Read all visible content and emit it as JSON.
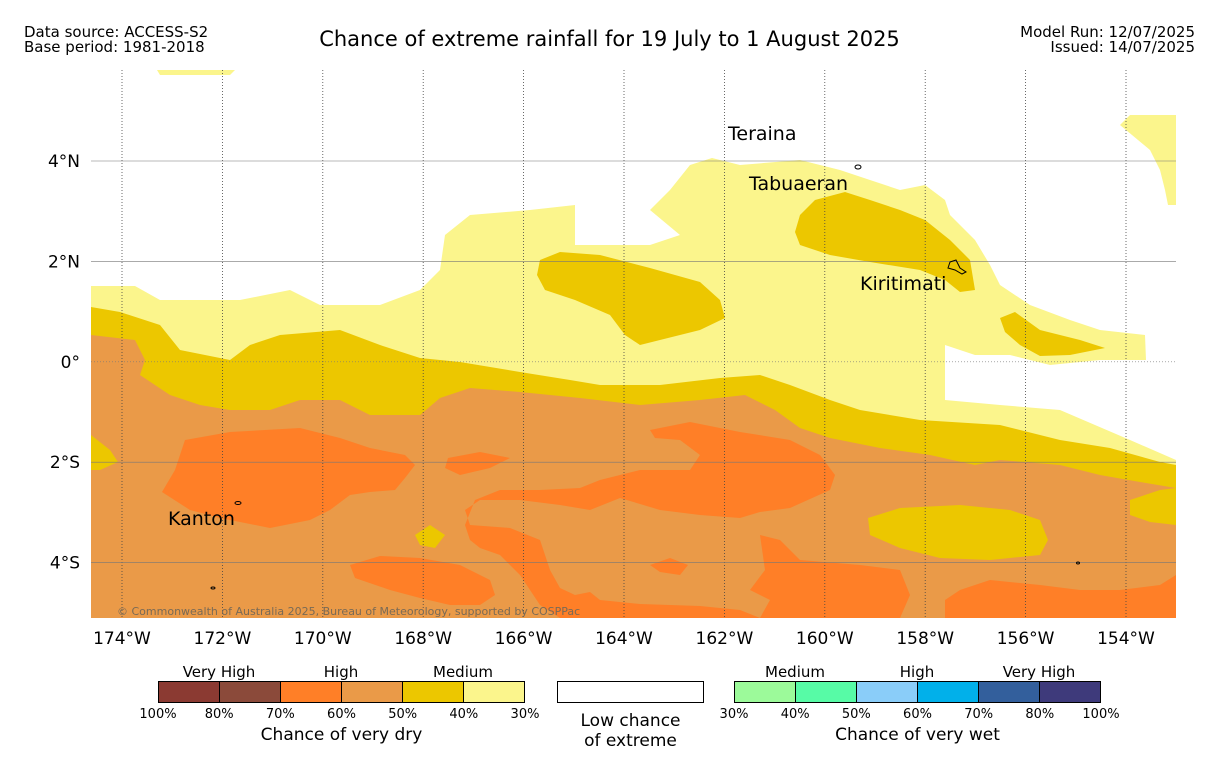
{
  "header": {
    "data_source": "Data source: ACCESS-S2",
    "base_period": "Base period: 1981-2018",
    "title": "Chance of extreme rainfall for 19 July to 1 August 2025",
    "model_run": "Model Run: 12/07/2025",
    "issued": "Issued: 14/07/2025"
  },
  "map": {
    "lon_labels": [
      "174°W",
      "172°W",
      "170°W",
      "168°W",
      "166°W",
      "164°W",
      "162°W",
      "160°W",
      "158°W",
      "156°W",
      "154°W"
    ],
    "lat_labels": [
      "4°N",
      "2°N",
      "0°",
      "2°S",
      "4°S"
    ],
    "places": [
      "Teraina",
      "Tabuaeran",
      "Kiritimati",
      "Kanton"
    ],
    "copyright": "© Commonwealth of Australia 2025, Bureau of Meteorology, supported by COSPPac"
  },
  "legend": {
    "dry": {
      "categories": [
        "Very High",
        "High",
        "Medium"
      ],
      "ticks": [
        "100%",
        "80%",
        "70%",
        "60%",
        "50%",
        "40%",
        "30%"
      ],
      "title": "Chance of very dry",
      "colors": [
        "#8b3a32",
        "#8b4a3a",
        "#ff7f27",
        "#ea9a48",
        "#ecc700",
        "#fbf58c"
      ]
    },
    "low": {
      "title_line1": "Low chance",
      "title_line2": "of extreme"
    },
    "wet": {
      "categories": [
        "Medium",
        "High",
        "Very High"
      ],
      "ticks": [
        "30%",
        "40%",
        "50%",
        "60%",
        "70%",
        "80%",
        "100%"
      ],
      "title": "Chance of very wet",
      "colors": [
        "#9cfa9a",
        "#57fba6",
        "#8acdf9",
        "#01b0ea",
        "#335f9c",
        "#3e3a7b"
      ]
    }
  }
}
